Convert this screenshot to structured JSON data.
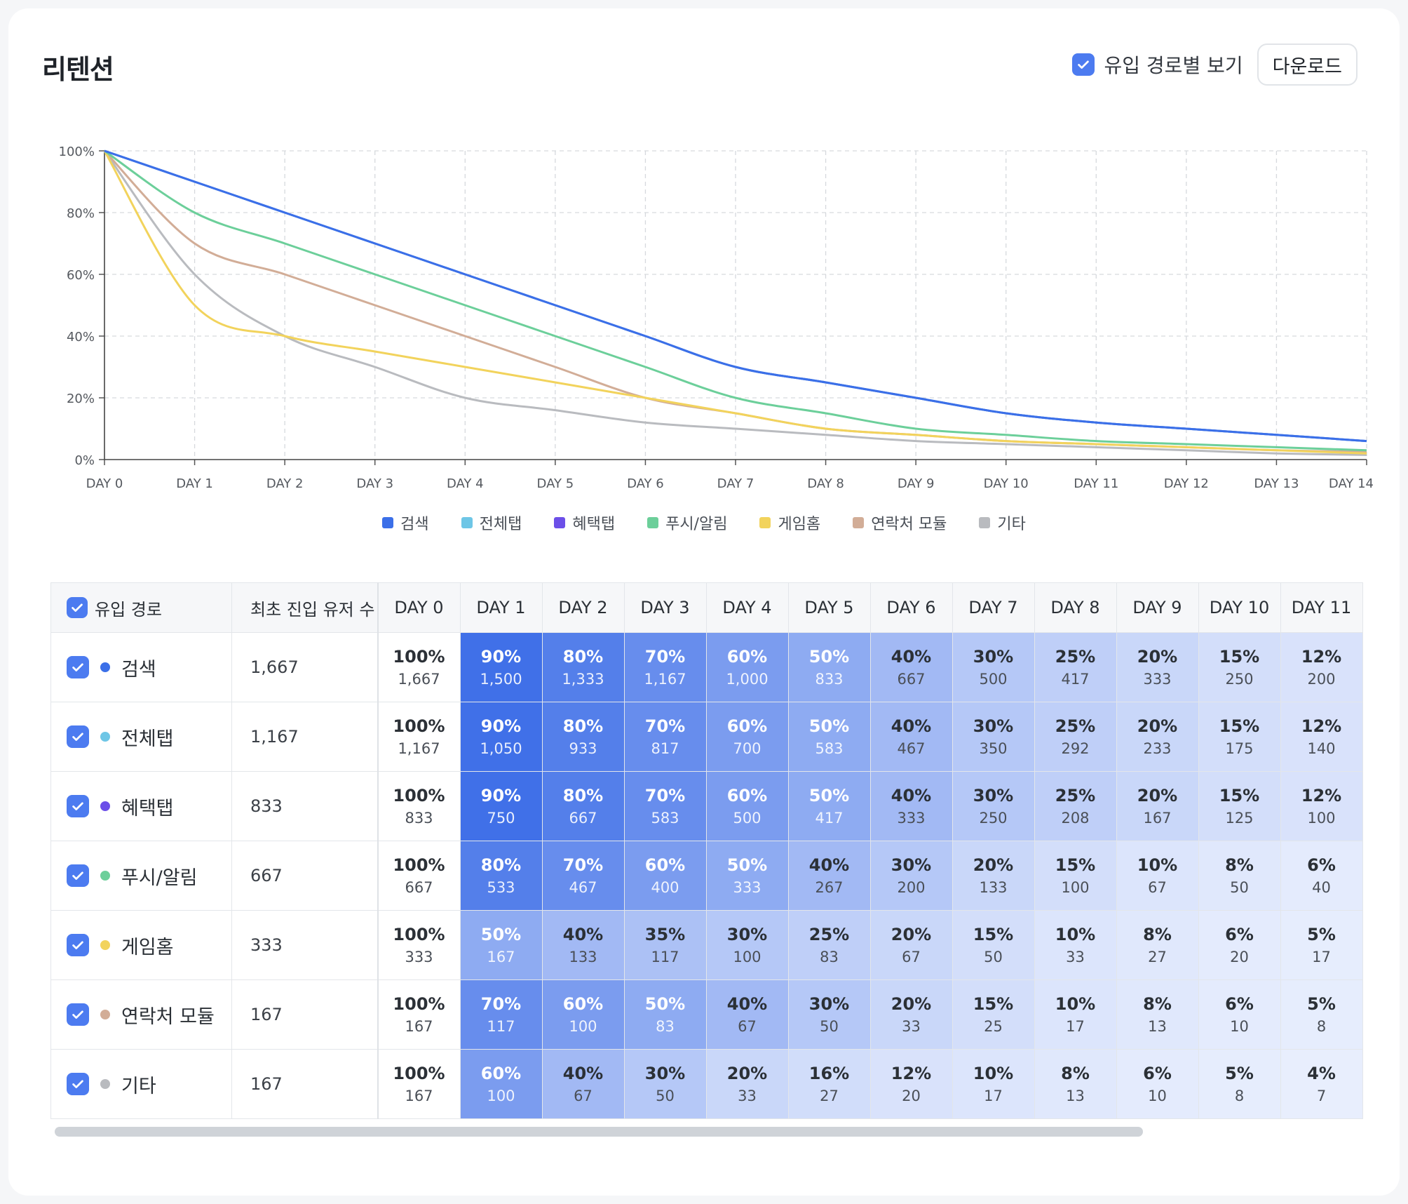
{
  "header": {
    "title": "리텐션",
    "toggle_label": "유입 경로별 보기",
    "download_label": "다운로드"
  },
  "chart_data": {
    "type": "line",
    "x": [
      "DAY 0",
      "DAY 1",
      "DAY 2",
      "DAY 3",
      "DAY 4",
      "DAY 5",
      "DAY 6",
      "DAY 7",
      "DAY 8",
      "DAY 9",
      "DAY 10",
      "DAY 11",
      "DAY 12",
      "DAY 13",
      "DAY 14"
    ],
    "y_ticks": [
      "0%",
      "20%",
      "40%",
      "60%",
      "80%",
      "100%"
    ],
    "ylim": [
      0,
      100
    ],
    "grid": true,
    "legend_position": "bottom",
    "series": [
      {
        "name": "검색",
        "color": "#3b6fe8",
        "values": [
          100,
          90,
          80,
          70,
          60,
          50,
          40,
          30,
          25,
          20,
          15,
          12,
          10,
          8,
          6
        ]
      },
      {
        "name": "전체탭",
        "color": "#6ec6e6",
        "values": [
          100,
          90,
          80,
          70,
          60,
          50,
          40,
          30,
          25,
          20,
          15,
          12,
          10,
          8,
          6
        ]
      },
      {
        "name": "혜택탭",
        "color": "#6c4fe8",
        "values": [
          100,
          90,
          80,
          70,
          60,
          50,
          40,
          30,
          25,
          20,
          15,
          12,
          10,
          8,
          6
        ]
      },
      {
        "name": "푸시/알림",
        "color": "#6ccf9a",
        "values": [
          100,
          80,
          70,
          60,
          50,
          40,
          30,
          20,
          15,
          10,
          8,
          6,
          5,
          4,
          3
        ]
      },
      {
        "name": "게임홈",
        "color": "#f2d35c",
        "values": [
          100,
          50,
          40,
          35,
          30,
          25,
          20,
          15,
          10,
          8,
          6,
          5,
          4,
          3,
          2
        ]
      },
      {
        "name": "연락처 모듈",
        "color": "#d2ad97",
        "values": [
          100,
          70,
          60,
          50,
          40,
          30,
          20,
          15,
          10,
          8,
          6,
          5,
          4,
          3,
          2.5
        ]
      },
      {
        "name": "기타",
        "color": "#b9bbbf",
        "values": [
          100,
          60,
          40,
          30,
          20,
          16,
          12,
          10,
          8,
          6,
          5,
          4,
          3,
          2,
          1.5
        ]
      }
    ]
  },
  "table": {
    "col_path": "유입 경로",
    "col_users": "최초 진입 유저 수",
    "day_headers": [
      "DAY 0",
      "DAY 1",
      "DAY 2",
      "DAY 3",
      "DAY 4",
      "DAY 5",
      "DAY 6",
      "DAY 7",
      "DAY 8",
      "DAY 9",
      "DAY 10",
      "DAY 11"
    ],
    "rows": [
      {
        "name": "검색",
        "dot": "#3b6fe8",
        "users": "1,667",
        "cells": [
          [
            "100%",
            "1,667"
          ],
          [
            "90%",
            "1,500"
          ],
          [
            "80%",
            "1,333"
          ],
          [
            "70%",
            "1,167"
          ],
          [
            "60%",
            "1,000"
          ],
          [
            "50%",
            "833"
          ],
          [
            "40%",
            "667"
          ],
          [
            "30%",
            "500"
          ],
          [
            "25%",
            "417"
          ],
          [
            "20%",
            "333"
          ],
          [
            "15%",
            "250"
          ],
          [
            "12%",
            "200"
          ]
        ]
      },
      {
        "name": "전체탭",
        "dot": "#6ec6e6",
        "users": "1,167",
        "cells": [
          [
            "100%",
            "1,167"
          ],
          [
            "90%",
            "1,050"
          ],
          [
            "80%",
            "933"
          ],
          [
            "70%",
            "817"
          ],
          [
            "60%",
            "700"
          ],
          [
            "50%",
            "583"
          ],
          [
            "40%",
            "467"
          ],
          [
            "30%",
            "350"
          ],
          [
            "25%",
            "292"
          ],
          [
            "20%",
            "233"
          ],
          [
            "15%",
            "175"
          ],
          [
            "12%",
            "140"
          ]
        ]
      },
      {
        "name": "혜택탭",
        "dot": "#6c4fe8",
        "users": "833",
        "cells": [
          [
            "100%",
            "833"
          ],
          [
            "90%",
            "750"
          ],
          [
            "80%",
            "667"
          ],
          [
            "70%",
            "583"
          ],
          [
            "60%",
            "500"
          ],
          [
            "50%",
            "417"
          ],
          [
            "40%",
            "333"
          ],
          [
            "30%",
            "250"
          ],
          [
            "25%",
            "208"
          ],
          [
            "20%",
            "167"
          ],
          [
            "15%",
            "125"
          ],
          [
            "12%",
            "100"
          ]
        ]
      },
      {
        "name": "푸시/알림",
        "dot": "#6ccf9a",
        "users": "667",
        "cells": [
          [
            "100%",
            "667"
          ],
          [
            "80%",
            "533"
          ],
          [
            "70%",
            "467"
          ],
          [
            "60%",
            "400"
          ],
          [
            "50%",
            "333"
          ],
          [
            "40%",
            "267"
          ],
          [
            "30%",
            "200"
          ],
          [
            "20%",
            "133"
          ],
          [
            "15%",
            "100"
          ],
          [
            "10%",
            "67"
          ],
          [
            "8%",
            "50"
          ],
          [
            "6%",
            "40"
          ]
        ]
      },
      {
        "name": "게임홈",
        "dot": "#f2d35c",
        "users": "333",
        "cells": [
          [
            "100%",
            "333"
          ],
          [
            "50%",
            "167"
          ],
          [
            "40%",
            "133"
          ],
          [
            "35%",
            "117"
          ],
          [
            "30%",
            "100"
          ],
          [
            "25%",
            "83"
          ],
          [
            "20%",
            "67"
          ],
          [
            "15%",
            "50"
          ],
          [
            "10%",
            "33"
          ],
          [
            "8%",
            "27"
          ],
          [
            "6%",
            "20"
          ],
          [
            "5%",
            "17"
          ]
        ]
      },
      {
        "name": "연락처 모듈",
        "dot": "#d2ad97",
        "users": "167",
        "cells": [
          [
            "100%",
            "167"
          ],
          [
            "70%",
            "117"
          ],
          [
            "60%",
            "100"
          ],
          [
            "50%",
            "83"
          ],
          [
            "40%",
            "67"
          ],
          [
            "30%",
            "50"
          ],
          [
            "20%",
            "33"
          ],
          [
            "15%",
            "25"
          ],
          [
            "10%",
            "17"
          ],
          [
            "8%",
            "13"
          ],
          [
            "6%",
            "10"
          ],
          [
            "5%",
            "8"
          ]
        ]
      },
      {
        "name": "기타",
        "dot": "#b9bbbf",
        "users": "167",
        "cells": [
          [
            "100%",
            "167"
          ],
          [
            "60%",
            "100"
          ],
          [
            "40%",
            "67"
          ],
          [
            "30%",
            "50"
          ],
          [
            "20%",
            "33"
          ],
          [
            "16%",
            "27"
          ],
          [
            "12%",
            "20"
          ],
          [
            "10%",
            "17"
          ],
          [
            "8%",
            "13"
          ],
          [
            "6%",
            "10"
          ],
          [
            "5%",
            "8"
          ],
          [
            "4%",
            "7"
          ]
        ]
      }
    ]
  }
}
